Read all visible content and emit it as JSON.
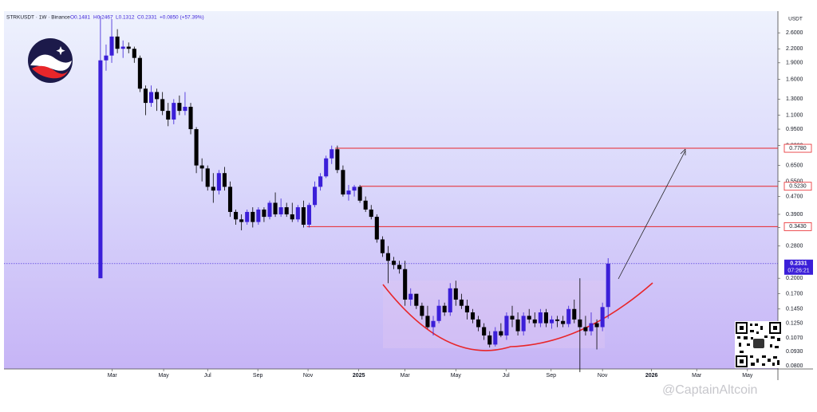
{
  "chart_data": {
    "type": "candlestick",
    "symbol": "STRKUSDT · 1W · Binance",
    "ohlc_header": [
      "O0.1481",
      "H0.2467",
      "L0.1312",
      "C0.2331",
      "+0.0850 (+57.39%)"
    ],
    "currency": "USDT",
    "watermark": "@CaptainAltcoin",
    "log_scale": true,
    "up_color": "#3b1fd8",
    "down_color": "#000000",
    "level_color": "#e8262a",
    "ylim": [
      0.0775,
      3.26
    ],
    "xlim": [
      -17.1,
      120.1
    ],
    "yticks": [
      {
        "value": 2.6,
        "label": "2.6000"
      },
      {
        "value": 2.2,
        "label": "2.2000"
      },
      {
        "value": 1.9,
        "label": "1.9000"
      },
      {
        "value": 1.6,
        "label": "1.6000"
      },
      {
        "value": 1.3,
        "label": "1.3000"
      },
      {
        "value": 1.1,
        "label": "1.1000"
      },
      {
        "value": 0.95,
        "label": "0.9500"
      },
      {
        "value": 0.8,
        "label": "0.8000"
      },
      {
        "value": 0.65,
        "label": "0.6500"
      },
      {
        "value": 0.55,
        "label": "0.5500"
      },
      {
        "value": 0.47,
        "label": "0.4700"
      },
      {
        "value": 0.39,
        "label": "0.3900"
      },
      {
        "value": 0.34,
        "label": "0.3400"
      },
      {
        "value": 0.28,
        "label": "0.2800"
      },
      {
        "value": 0.2,
        "label": "0.2000"
      },
      {
        "value": 0.17,
        "label": "0.1700"
      },
      {
        "value": 0.145,
        "label": "0.1450"
      },
      {
        "value": 0.125,
        "label": "0.1250"
      },
      {
        "value": 0.107,
        "label": "0.1070"
      },
      {
        "value": 0.093,
        "label": "0.0930"
      },
      {
        "value": 0.08,
        "label": "0.0800"
      }
    ],
    "xticks": [
      {
        "value": 2.1,
        "label": "Mar"
      },
      {
        "value": 11.2,
        "label": "May"
      },
      {
        "value": 19.0,
        "label": "Jul"
      },
      {
        "value": 27.9,
        "label": "Sep"
      },
      {
        "value": 36.8,
        "label": "Nov"
      },
      {
        "value": 45.8,
        "label": "2025"
      },
      {
        "value": 54.0,
        "label": "Mar"
      },
      {
        "value": 63.0,
        "label": "May"
      },
      {
        "value": 71.9,
        "label": "Jul"
      },
      {
        "value": 79.9,
        "label": "Sep"
      },
      {
        "value": 89.0,
        "label": "Nov"
      },
      {
        "value": 97.7,
        "label": "2026"
      },
      {
        "value": 105.7,
        "label": "Mar"
      },
      {
        "value": 114.7,
        "label": "May"
      }
    ],
    "levels": [
      {
        "value": 0.778,
        "label": "0.7780",
        "x_start": 41.6
      },
      {
        "value": 0.523,
        "label": "0.5230",
        "x_start": 46.1
      },
      {
        "value": 0.343,
        "label": "0.3430",
        "x_start": 36.6
      }
    ],
    "last_price": {
      "value": 0.2331,
      "label": "0.2331",
      "countdown": "07:26:21"
    },
    "candles": [
      [
        0.2,
        3.1,
        0.2,
        1.95
      ],
      [
        1.95,
        2.3,
        1.75,
        2.05
      ],
      [
        2.05,
        3.0,
        1.9,
        2.5
      ],
      [
        2.5,
        2.7,
        2.1,
        2.2
      ],
      [
        2.2,
        2.4,
        2.0,
        2.25
      ],
      [
        2.25,
        2.35,
        2.1,
        2.2
      ],
      [
        2.2,
        2.25,
        1.9,
        2.0
      ],
      [
        2.0,
        2.05,
        1.4,
        1.45
      ],
      [
        1.45,
        1.5,
        1.1,
        1.25
      ],
      [
        1.25,
        1.5,
        1.2,
        1.4
      ],
      [
        1.4,
        1.45,
        1.15,
        1.3
      ],
      [
        1.3,
        1.4,
        1.1,
        1.15
      ],
      [
        1.15,
        1.25,
        0.98,
        1.05
      ],
      [
        1.05,
        1.3,
        1.0,
        1.25
      ],
      [
        1.25,
        1.35,
        1.1,
        1.15
      ],
      [
        1.15,
        1.4,
        1.1,
        1.2
      ],
      [
        1.2,
        1.25,
        0.9,
        0.95
      ],
      [
        0.95,
        0.97,
        0.6,
        0.65
      ],
      [
        0.65,
        0.7,
        0.55,
        0.63
      ],
      [
        0.63,
        0.65,
        0.5,
        0.52
      ],
      [
        0.52,
        0.6,
        0.44,
        0.5
      ],
      [
        0.5,
        0.62,
        0.48,
        0.6
      ],
      [
        0.6,
        0.64,
        0.5,
        0.52
      ],
      [
        0.52,
        0.55,
        0.38,
        0.4
      ],
      [
        0.4,
        0.41,
        0.35,
        0.37
      ],
      [
        0.37,
        0.39,
        0.33,
        0.36
      ],
      [
        0.36,
        0.41,
        0.35,
        0.4
      ],
      [
        0.4,
        0.42,
        0.34,
        0.36
      ],
      [
        0.36,
        0.42,
        0.35,
        0.41
      ],
      [
        0.41,
        0.42,
        0.36,
        0.38
      ],
      [
        0.38,
        0.45,
        0.37,
        0.44
      ],
      [
        0.44,
        0.49,
        0.38,
        0.39
      ],
      [
        0.39,
        0.46,
        0.38,
        0.42
      ],
      [
        0.42,
        0.44,
        0.38,
        0.39
      ],
      [
        0.39,
        0.44,
        0.36,
        0.37
      ],
      [
        0.37,
        0.43,
        0.36,
        0.42
      ],
      [
        0.42,
        0.45,
        0.34,
        0.35
      ],
      [
        0.35,
        0.44,
        0.34,
        0.43
      ],
      [
        0.43,
        0.55,
        0.42,
        0.52
      ],
      [
        0.52,
        0.6,
        0.5,
        0.58
      ],
      [
        0.58,
        0.72,
        0.57,
        0.7
      ],
      [
        0.7,
        0.8,
        0.66,
        0.77
      ],
      [
        0.77,
        0.8,
        0.6,
        0.62
      ],
      [
        0.62,
        0.65,
        0.47,
        0.48
      ],
      [
        0.48,
        0.53,
        0.45,
        0.5
      ],
      [
        0.5,
        0.53,
        0.47,
        0.52
      ],
      [
        0.52,
        0.53,
        0.44,
        0.45
      ],
      [
        0.45,
        0.47,
        0.4,
        0.41
      ],
      [
        0.41,
        0.43,
        0.37,
        0.38
      ],
      [
        0.38,
        0.39,
        0.29,
        0.3
      ],
      [
        0.3,
        0.31,
        0.25,
        0.26
      ],
      [
        0.26,
        0.28,
        0.19,
        0.24
      ],
      [
        0.24,
        0.25,
        0.22,
        0.23
      ],
      [
        0.23,
        0.24,
        0.21,
        0.22
      ],
      [
        0.22,
        0.24,
        0.15,
        0.16
      ],
      [
        0.16,
        0.18,
        0.15,
        0.17
      ],
      [
        0.17,
        0.17,
        0.145,
        0.15
      ],
      [
        0.15,
        0.155,
        0.13,
        0.135
      ],
      [
        0.135,
        0.15,
        0.118,
        0.12
      ],
      [
        0.12,
        0.135,
        0.11,
        0.128
      ],
      [
        0.128,
        0.16,
        0.125,
        0.15
      ],
      [
        0.15,
        0.155,
        0.135,
        0.14
      ],
      [
        0.14,
        0.19,
        0.135,
        0.18
      ],
      [
        0.18,
        0.195,
        0.15,
        0.16
      ],
      [
        0.16,
        0.17,
        0.145,
        0.15
      ],
      [
        0.15,
        0.16,
        0.13,
        0.14
      ],
      [
        0.14,
        0.145,
        0.125,
        0.13
      ],
      [
        0.13,
        0.135,
        0.115,
        0.12
      ],
      [
        0.12,
        0.125,
        0.105,
        0.11
      ],
      [
        0.11,
        0.115,
        0.097,
        0.1
      ],
      [
        0.1,
        0.12,
        0.098,
        0.115
      ],
      [
        0.115,
        0.125,
        0.108,
        0.11
      ],
      [
        0.11,
        0.14,
        0.105,
        0.135
      ],
      [
        0.135,
        0.15,
        0.12,
        0.13
      ],
      [
        0.13,
        0.14,
        0.11,
        0.115
      ],
      [
        0.115,
        0.14,
        0.11,
        0.135
      ],
      [
        0.135,
        0.145,
        0.125,
        0.13
      ],
      [
        0.13,
        0.14,
        0.12,
        0.125
      ],
      [
        0.125,
        0.145,
        0.12,
        0.14
      ],
      [
        0.14,
        0.145,
        0.12,
        0.125
      ],
      [
        0.125,
        0.135,
        0.118,
        0.13
      ],
      [
        0.13,
        0.135,
        0.12,
        0.128
      ],
      [
        0.128,
        0.135,
        0.12,
        0.124
      ],
      [
        0.124,
        0.15,
        0.12,
        0.145
      ],
      [
        0.145,
        0.16,
        0.125,
        0.13
      ],
      [
        0.13,
        0.2,
        0.075,
        0.12
      ],
      [
        0.12,
        0.135,
        0.11,
        0.115
      ],
      [
        0.115,
        0.14,
        0.11,
        0.125
      ],
      [
        0.125,
        0.13,
        0.095,
        0.12
      ],
      [
        0.12,
        0.155,
        0.115,
        0.148
      ],
      [
        0.1481,
        0.2467,
        0.1312,
        0.2331
      ]
    ]
  }
}
